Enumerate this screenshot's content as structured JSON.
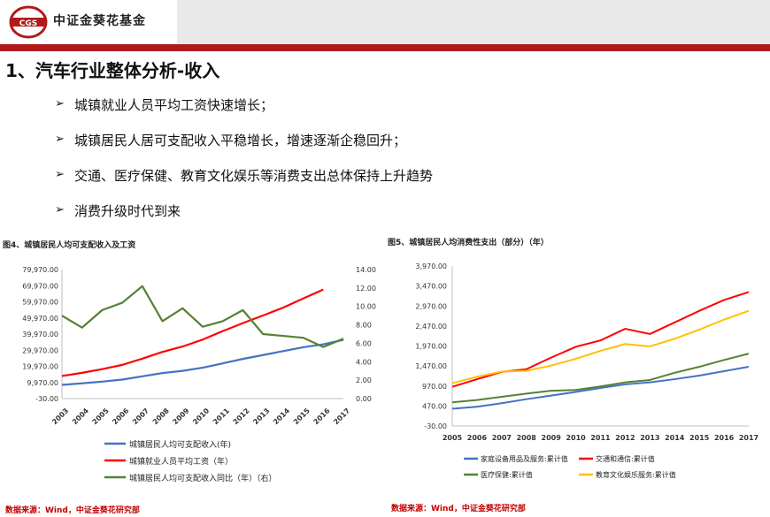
{
  "brand": {
    "name": "中证金葵花基金",
    "logo_letters": "CGS"
  },
  "heading": "1、汽车行业整体分析-收入",
  "bullets": [
    "城镇就业人员平均工资快速增长；",
    "城镇居民人居可支配收入平稳增长，增速逐渐企稳回升；",
    "交通、医疗保健、教育文化娱乐等消费支出总体保持上升趋势",
    "消费升级时代到来"
  ],
  "colors": {
    "brand_red": "#b01a1a",
    "blue": "#4472c4",
    "red": "#ff0000",
    "green": "#548235",
    "yellow": "#ffc000"
  },
  "chart_data": [
    {
      "type": "line",
      "title": "图4、城镇居民人均可支配收入及工资",
      "x": [
        "2003",
        "2004",
        "2005",
        "2006",
        "2007",
        "2008",
        "2009",
        "2010",
        "2011",
        "2012",
        "2013",
        "2014",
        "2015",
        "2016",
        "2017"
      ],
      "y_left_ticks": [
        "79,970.00",
        "69,970.00",
        "59,970.00",
        "49,970.00",
        "39,970.00",
        "29,970.00",
        "19,970.00",
        "9,970.00",
        "-30.00"
      ],
      "y_left_range": [
        -30,
        79970
      ],
      "y_right_ticks": [
        "14.00",
        "12.00",
        "10.00",
        "8.00",
        "6.00",
        "4.00",
        "2.00",
        "0.00"
      ],
      "y_right_range": [
        0,
        14
      ],
      "series": [
        {
          "name": "城镇居民人均可支配收入(年)",
          "axis": "left",
          "color": "#4472c4",
          "x": [
            "2003",
            "2004",
            "2005",
            "2006",
            "2007",
            "2008",
            "2009",
            "2010",
            "2011",
            "2012",
            "2013",
            "2014",
            "2015",
            "2016",
            "2017"
          ],
          "values": [
            8470,
            9420,
            10490,
            11760,
            13790,
            15780,
            17170,
            19110,
            21810,
            24560,
            26960,
            29380,
            31790,
            33620,
            36400
          ]
        },
        {
          "name": "城镇就业人员平均工资（年）",
          "axis": "left",
          "color": "#ff0000",
          "x": [
            "2003",
            "2004",
            "2005",
            "2006",
            "2007",
            "2008",
            "2009",
            "2010",
            "2011",
            "2012",
            "2013",
            "2014",
            "2015",
            "2016"
          ],
          "values": [
            13970,
            15920,
            18200,
            20860,
            24720,
            28900,
            32240,
            36540,
            41800,
            46770,
            51480,
            56360,
            62030,
            67570
          ]
        },
        {
          "name": "城镇居民人均可支配收入同比（年）（右）",
          "axis": "right",
          "color": "#548235",
          "x": [
            "2003",
            "2004",
            "2005",
            "2006",
            "2007",
            "2008",
            "2009",
            "2010",
            "2011",
            "2012",
            "2013",
            "2014",
            "2015",
            "2016",
            "2017"
          ],
          "values": [
            9.0,
            7.7,
            9.6,
            10.4,
            12.2,
            8.4,
            9.8,
            7.8,
            8.4,
            9.6,
            7.0,
            6.8,
            6.6,
            5.6,
            6.5
          ]
        }
      ],
      "source": "数据来源：Wind，中证金葵花研究部"
    },
    {
      "type": "line",
      "title": "图5、城镇居民人均消费性支出（部分）（年）",
      "x": [
        "2005",
        "2006",
        "2007",
        "2008",
        "2009",
        "2010",
        "2011",
        "2012",
        "2013",
        "2014",
        "2015",
        "2016",
        "2017"
      ],
      "y_ticks": [
        "3,970.00",
        "3,470.00",
        "2,970.00",
        "2,470.00",
        "1,970.00",
        "1,470.00",
        "970.00",
        "470.00",
        "-30.00"
      ],
      "y_range": [
        -30,
        3970
      ],
      "series": [
        {
          "name": "家庭设备用品及服务:累计值",
          "color": "#4472c4",
          "points": [
            [
              2005,
              400
            ],
            [
              2006,
              450
            ],
            [
              2007,
              540
            ],
            [
              2008,
              640
            ],
            [
              2009,
              730
            ],
            [
              2010,
              820
            ],
            [
              2011,
              920
            ],
            [
              2012,
              1010
            ],
            [
              2013,
              1060
            ],
            [
              2014,
              1140
            ],
            [
              2015,
              1230
            ],
            [
              2016,
              1340
            ],
            [
              2017,
              1450
            ]
          ]
        },
        {
          "name": "交通和通信:累计值",
          "color": "#ff0000",
          "points": [
            [
              2005,
              950
            ],
            [
              2006,
              1140
            ],
            [
              2007,
              1320
            ],
            [
              2008,
              1390
            ],
            [
              2009,
              1680
            ],
            [
              2010,
              1950
            ],
            [
              2011,
              2110
            ],
            [
              2012,
              2400
            ],
            [
              2013,
              2270
            ],
            [
              2014,
              2560
            ],
            [
              2015,
              2850
            ],
            [
              2016,
              3120
            ],
            [
              2017,
              3320
            ]
          ]
        },
        {
          "name": "医疗保健:累计值",
          "color": "#548235",
          "points": [
            [
              2005,
              560
            ],
            [
              2006,
              620
            ],
            [
              2007,
              700
            ],
            [
              2008,
              780
            ],
            [
              2009,
              850
            ],
            [
              2010,
              870
            ],
            [
              2011,
              960
            ],
            [
              2012,
              1060
            ],
            [
              2013,
              1120
            ],
            [
              2014,
              1300
            ],
            [
              2015,
              1450
            ],
            [
              2016,
              1620
            ],
            [
              2017,
              1780
            ]
          ]
        },
        {
          "name": "教育文化娱乐服务:累计值",
          "color": "#ffc000",
          "points": [
            [
              2005,
              1040
            ],
            [
              2006,
              1200
            ],
            [
              2007,
              1330
            ],
            [
              2008,
              1350
            ],
            [
              2009,
              1480
            ],
            [
              2010,
              1650
            ],
            [
              2011,
              1850
            ],
            [
              2012,
              2020
            ],
            [
              2013,
              1960
            ],
            [
              2014,
              2150
            ],
            [
              2015,
              2380
            ],
            [
              2016,
              2630
            ],
            [
              2017,
              2850
            ]
          ]
        }
      ],
      "source": "数据来源：Wind，中证金葵花研究部"
    }
  ]
}
